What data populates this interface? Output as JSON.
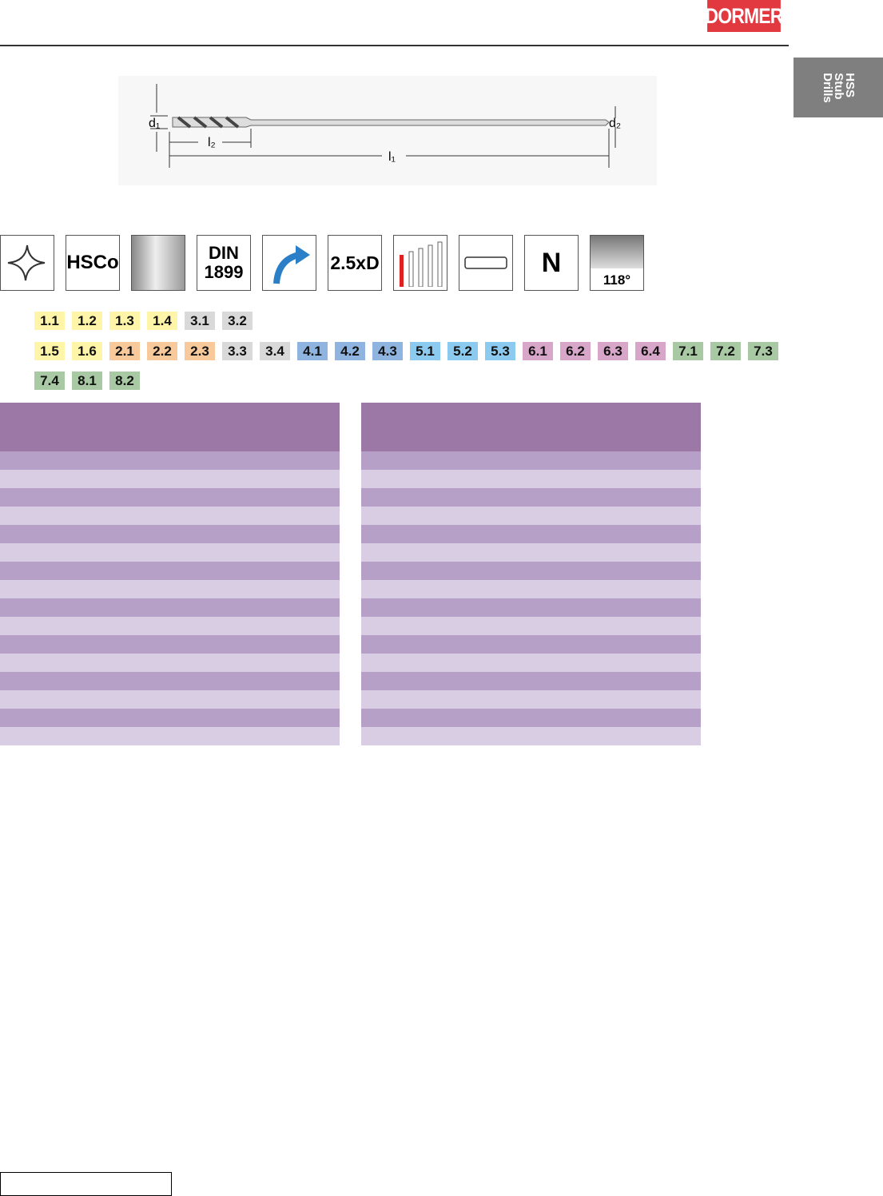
{
  "header": {
    "logo": "DORMER"
  },
  "side_tab": {
    "lines": [
      "HSS",
      "Stub",
      "Drills"
    ]
  },
  "diagram": {
    "labels": {
      "d1": "d₁",
      "d2": "d₂",
      "l2": "l₂",
      "l1": "l₁"
    }
  },
  "icons": {
    "material": "HSCo",
    "standard_top": "DIN",
    "standard_bottom": "1899",
    "depth": "2.5xD",
    "type": "N",
    "point_angle": "118°"
  },
  "material_groups": [
    [
      {
        "code": "1.1",
        "color": "#fff5a8"
      },
      {
        "code": "1.2",
        "color": "#fff5a8"
      },
      {
        "code": "1.3",
        "color": "#fff5a8"
      },
      {
        "code": "1.4",
        "color": "#fff5a8"
      },
      {
        "code": "3.1",
        "color": "#d9d9d9"
      },
      {
        "code": "3.2",
        "color": "#d9d9d9"
      }
    ],
    [
      {
        "code": "1.5",
        "color": "#fff5a8"
      },
      {
        "code": "1.6",
        "color": "#fff5a8"
      },
      {
        "code": "2.1",
        "color": "#f7c99b"
      },
      {
        "code": "2.2",
        "color": "#f7c99b"
      },
      {
        "code": "2.3",
        "color": "#f7c99b"
      },
      {
        "code": "3.3",
        "color": "#d9d9d9"
      },
      {
        "code": "3.4",
        "color": "#d9d9d9"
      },
      {
        "code": "4.1",
        "color": "#8fb4e0"
      },
      {
        "code": "4.2",
        "color": "#8fb4e0"
      },
      {
        "code": "4.3",
        "color": "#8fb4e0"
      },
      {
        "code": "5.1",
        "color": "#8ccbef"
      },
      {
        "code": "5.2",
        "color": "#8ccbef"
      },
      {
        "code": "5.3",
        "color": "#8ccbef"
      },
      {
        "code": "6.1",
        "color": "#d7a6c8"
      },
      {
        "code": "6.2",
        "color": "#d7a6c8"
      },
      {
        "code": "6.3",
        "color": "#d7a6c8"
      },
      {
        "code": "6.4",
        "color": "#d7a6c8"
      },
      {
        "code": "7.1",
        "color": "#a9c9a4"
      },
      {
        "code": "7.2",
        "color": "#a9c9a4"
      },
      {
        "code": "7.3",
        "color": "#a9c9a4"
      }
    ],
    [
      {
        "code": "7.4",
        "color": "#a9c9a4"
      },
      {
        "code": "8.1",
        "color": "#a9c9a4"
      },
      {
        "code": "8.2",
        "color": "#a9c9a4"
      }
    ]
  ]
}
